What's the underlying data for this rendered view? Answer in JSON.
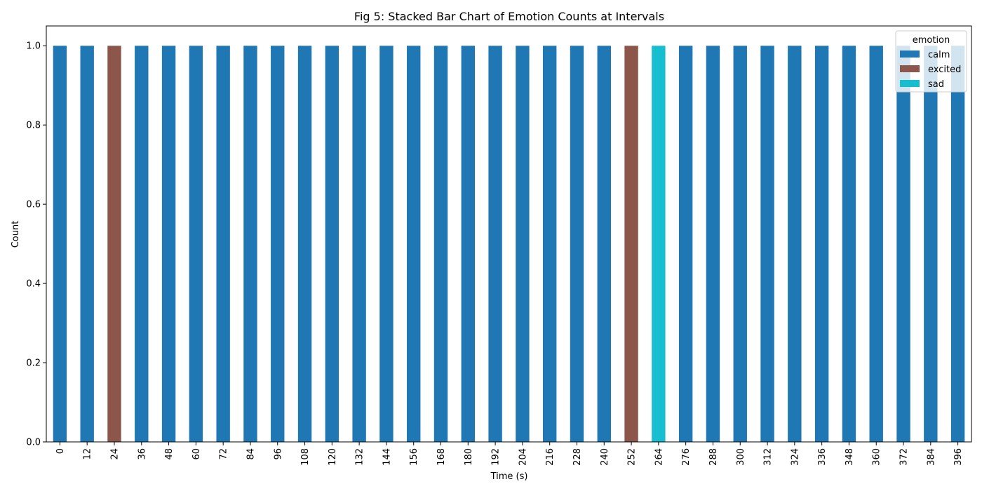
{
  "chart_data": {
    "type": "bar",
    "stacked": true,
    "title": "Fig 5: Stacked Bar Chart of Emotion Counts at Intervals",
    "xlabel": "Time (s)",
    "ylabel": "Count",
    "ylim": [
      0,
      1.05
    ],
    "yticks": [
      "0.0",
      "0.2",
      "0.4",
      "0.6",
      "0.8",
      "1.0"
    ],
    "grid": false,
    "legend": {
      "title": "emotion",
      "placement": "top-right"
    },
    "categories": [
      "0",
      "12",
      "24",
      "36",
      "48",
      "60",
      "72",
      "84",
      "96",
      "108",
      "120",
      "132",
      "144",
      "156",
      "168",
      "180",
      "192",
      "204",
      "216",
      "228",
      "240",
      "252",
      "264",
      "276",
      "288",
      "300",
      "312",
      "324",
      "336",
      "348",
      "360",
      "372",
      "384",
      "396"
    ],
    "series": [
      {
        "name": "calm",
        "color": "#1f77b4",
        "values": [
          1,
          1,
          0,
          1,
          1,
          1,
          1,
          1,
          1,
          1,
          1,
          1,
          1,
          1,
          1,
          1,
          1,
          1,
          1,
          1,
          1,
          0,
          0,
          1,
          1,
          1,
          1,
          1,
          1,
          1,
          1,
          1,
          1,
          1
        ]
      },
      {
        "name": "excited",
        "color": "#8c564b",
        "values": [
          0,
          0,
          1,
          0,
          0,
          0,
          0,
          0,
          0,
          0,
          0,
          0,
          0,
          0,
          0,
          0,
          0,
          0,
          0,
          0,
          0,
          1,
          0,
          0,
          0,
          0,
          0,
          0,
          0,
          0,
          0,
          0,
          0,
          0
        ]
      },
      {
        "name": "sad",
        "color": "#17becf",
        "values": [
          0,
          0,
          0,
          0,
          0,
          0,
          0,
          0,
          0,
          0,
          0,
          0,
          0,
          0,
          0,
          0,
          0,
          0,
          0,
          0,
          0,
          0,
          1,
          0,
          0,
          0,
          0,
          0,
          0,
          0,
          0,
          0,
          0,
          0
        ]
      }
    ]
  }
}
